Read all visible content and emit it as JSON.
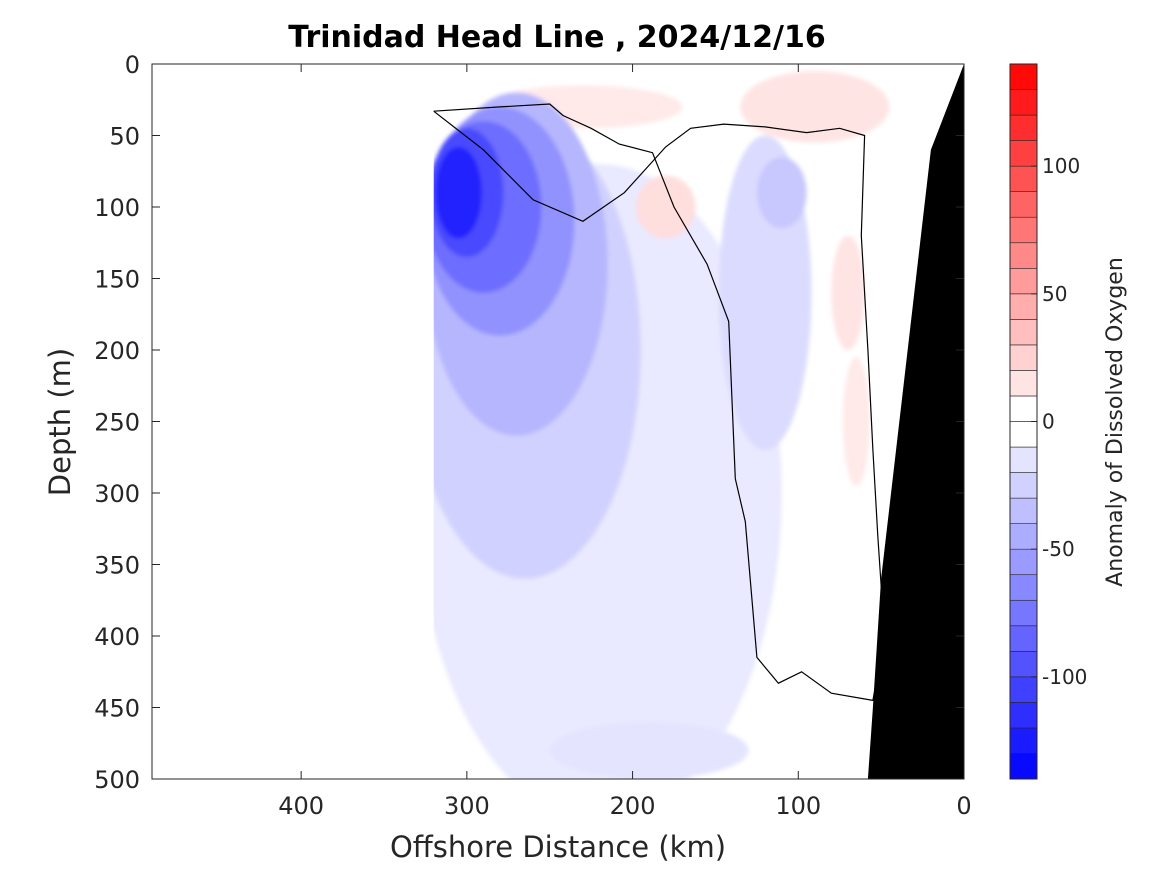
{
  "chart_data": {
    "type": "heatmap",
    "title": "Trinidad Head Line , 2024/12/16",
    "xlabel": "Offshore Distance (km)",
    "ylabel": "Depth (m)",
    "colorbar_label": "Anomaly of Dissolved Oxygen",
    "x_axis": {
      "range": [
        490,
        0
      ],
      "reversed": true,
      "ticks": [
        400,
        300,
        200,
        100,
        0
      ]
    },
    "y_axis": {
      "range": [
        0,
        500
      ],
      "reversed": true,
      "ticks": [
        0,
        50,
        100,
        150,
        200,
        250,
        300,
        350,
        400,
        450,
        500
      ]
    },
    "colorbar": {
      "range": [
        -140,
        140
      ],
      "ticks": [
        100,
        50,
        0,
        -50,
        -100
      ],
      "levels_step": 10,
      "negative_color": "#0000ff",
      "positive_color": "#ff0000",
      "zero_color": "#ffffff"
    },
    "data_coverage_km": [
      0,
      320
    ],
    "bathymetry_color": "#000000",
    "bathymetry_bottom": [
      [
        0,
        0
      ],
      [
        20,
        60
      ],
      [
        30,
        160
      ],
      [
        40,
        260
      ],
      [
        50,
        360
      ],
      [
        55,
        450
      ],
      [
        58,
        500
      ]
    ],
    "zero_contour_color": "#000000",
    "anomaly_blobs": [
      {
        "x": 305,
        "depth": 90,
        "rx": 14,
        "ry": 32,
        "value": -120
      },
      {
        "x": 300,
        "depth": 90,
        "rx": 22,
        "ry": 45,
        "value": -100
      },
      {
        "x": 290,
        "depth": 100,
        "rx": 35,
        "ry": 60,
        "value": -80
      },
      {
        "x": 280,
        "depth": 110,
        "rx": 45,
        "ry": 80,
        "value": -60
      },
      {
        "x": 270,
        "depth": 140,
        "rx": 55,
        "ry": 120,
        "value": -40
      },
      {
        "x": 265,
        "depth": 200,
        "rx": 70,
        "ry": 160,
        "value": -25
      },
      {
        "x": 220,
        "depth": 300,
        "rx": 110,
        "ry": 230,
        "value": -12
      },
      {
        "x": 120,
        "depth": 160,
        "rx": 28,
        "ry": 110,
        "value": -20
      },
      {
        "x": 110,
        "depth": 90,
        "rx": 15,
        "ry": 25,
        "value": -30
      },
      {
        "x": 190,
        "depth": 480,
        "rx": 60,
        "ry": 20,
        "value": -15
      },
      {
        "x": 230,
        "depth": 30,
        "rx": 60,
        "ry": 15,
        "value": 12
      },
      {
        "x": 90,
        "depth": 30,
        "rx": 45,
        "ry": 25,
        "value": 15
      },
      {
        "x": 180,
        "depth": 100,
        "rx": 18,
        "ry": 22,
        "value": 18
      },
      {
        "x": 70,
        "depth": 160,
        "rx": 10,
        "ry": 40,
        "value": 15
      },
      {
        "x": 65,
        "depth": 250,
        "rx": 8,
        "ry": 45,
        "value": 12
      }
    ],
    "zero_contours": [
      [
        [
          320,
          33
        ],
        [
          280,
          30
        ],
        [
          250,
          28
        ],
        [
          242,
          36
        ],
        [
          225,
          45
        ],
        [
          208,
          56
        ],
        [
          188,
          62
        ],
        [
          175,
          100
        ],
        [
          155,
          140
        ],
        [
          142,
          180
        ],
        [
          138,
          290
        ],
        [
          132,
          320
        ],
        [
          125,
          415
        ],
        [
          112,
          433
        ],
        [
          98,
          425
        ],
        [
          80,
          440
        ],
        [
          55,
          445
        ],
        [
          48,
          400
        ],
        [
          52,
          330
        ],
        [
          55,
          270
        ],
        [
          58,
          200
        ],
        [
          62,
          120
        ],
        [
          60,
          50
        ],
        [
          75,
          45
        ],
        [
          95,
          48
        ],
        [
          120,
          44
        ],
        [
          145,
          42
        ],
        [
          165,
          45
        ],
        [
          180,
          58
        ],
        [
          205,
          90
        ],
        [
          230,
          110
        ],
        [
          260,
          95
        ],
        [
          290,
          60
        ],
        [
          320,
          33
        ]
      ]
    ]
  }
}
